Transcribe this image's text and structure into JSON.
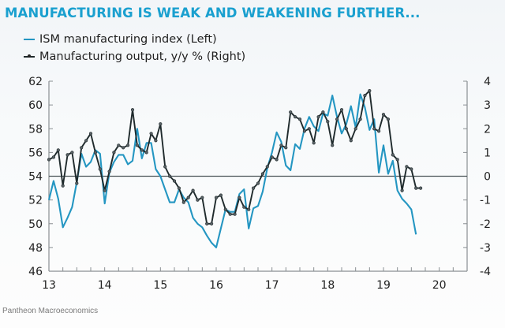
{
  "chart_data": {
    "type": "line",
    "title": "MANUFACTURING IS WEAK AND WEAKENING FURTHER...",
    "source": "Pantheon Macroeconomics",
    "x_start": "2013-01",
    "x_frequency": "monthly",
    "xlim": [
      13,
      20.5
    ],
    "x_tick_labels": [
      "13",
      "14",
      "15",
      "16",
      "17",
      "18",
      "19",
      "20"
    ],
    "y_left": {
      "label": "ISM manufacturing index",
      "ylim": [
        46,
        62
      ],
      "ticks": [
        "62",
        "60",
        "58",
        "56",
        "54",
        "52",
        "50",
        "48",
        "46"
      ]
    },
    "y_right": {
      "label": "Manufacturing output, y/y %",
      "ylim": [
        -4,
        4
      ],
      "ticks": [
        "4",
        "3",
        "2",
        "1",
        "0",
        "-1",
        "-2",
        "-3",
        "-4"
      ]
    },
    "zero_line_right": 0,
    "legend_position": "top-left",
    "grid": false,
    "series": [
      {
        "name": "ISM manufacturing index (Left)",
        "axis": "left",
        "color": "#2496c2",
        "markers": false,
        "values": [
          52.0,
          53.6,
          52.1,
          49.7,
          50.5,
          51.4,
          53.5,
          55.9,
          54.8,
          55.2,
          56.2,
          55.9,
          51.7,
          54.3,
          55.2,
          55.8,
          55.8,
          55.0,
          55.3,
          58.0,
          55.5,
          56.8,
          56.8,
          54.6,
          54.0,
          52.9,
          51.8,
          51.8,
          52.9,
          52.2,
          51.8,
          50.5,
          50.0,
          49.7,
          49.0,
          48.4,
          48.0,
          49.6,
          51.2,
          51.0,
          51.0,
          52.5,
          52.9,
          49.6,
          51.3,
          51.5,
          52.7,
          54.7,
          56.0,
          57.7,
          56.9,
          54.9,
          54.5,
          56.7,
          56.3,
          58.0,
          59.0,
          58.2,
          57.8,
          59.3,
          59.1,
          60.8,
          59.0,
          57.6,
          58.4,
          59.9,
          58.1,
          60.9,
          59.8,
          57.9,
          58.8,
          54.3,
          56.6,
          54.2,
          55.3,
          52.8,
          52.1,
          51.7,
          51.2,
          49.1
        ],
        "notes": "ISM values read approximately from the plotted line"
      },
      {
        "name": "Manufacturing output, y/y % (Right)",
        "axis": "right",
        "color": "#1f2a2c",
        "markers": true,
        "values": [
          0.7,
          0.8,
          1.1,
          -0.4,
          0.9,
          1.0,
          -0.3,
          1.2,
          1.5,
          1.8,
          1.0,
          0.3,
          -0.6,
          0.2,
          1.0,
          1.3,
          1.2,
          1.3,
          2.8,
          1.3,
          1.1,
          1.0,
          1.8,
          1.5,
          2.2,
          0.4,
          0.0,
          -0.2,
          -0.5,
          -1.1,
          -0.9,
          -0.6,
          -1.0,
          -0.9,
          -2.0,
          -2.0,
          -0.9,
          -0.8,
          -1.4,
          -1.6,
          -1.6,
          -0.9,
          -1.3,
          -1.4,
          -0.5,
          -0.3,
          0.1,
          0.4,
          0.8,
          0.7,
          1.3,
          1.2,
          2.7,
          2.5,
          2.4,
          1.9,
          2.0,
          1.4,
          2.5,
          2.7,
          2.3,
          1.3,
          2.4,
          2.8,
          2.0,
          1.5,
          2.0,
          2.4,
          3.4,
          3.6,
          2.0,
          1.9,
          2.6,
          2.4,
          0.9,
          0.7,
          -0.6,
          0.4,
          0.3,
          -0.5,
          -0.5
        ],
        "notes": "Output values read approximately from the plotted line"
      }
    ]
  }
}
